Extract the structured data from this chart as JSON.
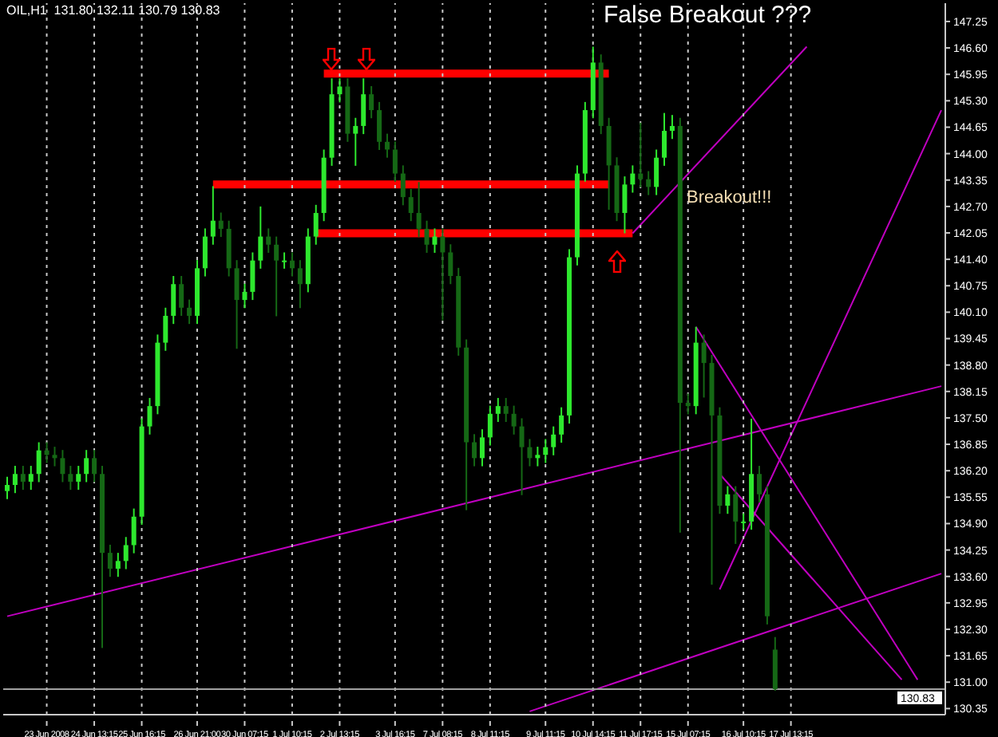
{
  "chart_data": {
    "type": "candlestick",
    "title": "OIL,H1  131.80 132.11 130.79 130.83",
    "colors": [
      "#2ee82e",
      "#2ee82e",
      "#156815",
      "#2ee82e",
      "#2ee82e",
      "#156815",
      "#156815",
      "#156815",
      "#156815",
      "#2ee82e",
      "#2ee82e",
      "#156815",
      "#156815",
      "#156815",
      "#2ee82e",
      "#2ee82e",
      "#2ee82e",
      "#2ee82e",
      "#2ee82e",
      "#2ee82e",
      "#2ee82e",
      "#2ee82e",
      "#156815",
      "#156815",
      "#2ee82e",
      "#2ee82e",
      "#2ee82e",
      "#156815",
      "#156815",
      "#156815",
      "#2ee82e",
      "#2ee82e",
      "#2ee82e",
      "#156815",
      "#156815",
      "#2ee82e",
      "#156815",
      "#156815",
      "#2ee82e",
      "#2ee82e",
      "#2ee82e",
      "#2ee82e",
      "#2ee82e",
      "#156815",
      "#2ee82e",
      "#2ee82e",
      "#156815",
      "#156815",
      "#156815",
      "#156815",
      "#156815",
      "#156815",
      "#156815",
      "#156815",
      "#2ee82e",
      "#156815",
      "#156815",
      "#156815",
      "#156815",
      "#156815",
      "#2ee82e",
      "#2ee82e",
      "#2ee82e",
      "#156815",
      "#156815",
      "#156815",
      "#156815",
      "#2ee82e",
      "#2ee82e",
      "#2ee82e",
      "#2ee82e",
      "#2ee82e",
      "#2ee82e",
      "#2ee82e",
      "#2ee82e",
      "#156815",
      "#156815",
      "#156815",
      "#2ee82e",
      "#2ee82e",
      "#156815",
      "#156815",
      "#2ee82e",
      "#2ee82e",
      "#2ee82e",
      "#156815",
      "#156815",
      "#2ee82e",
      "#156815",
      "#156815",
      "#156815",
      "#2ee82e",
      "#156815",
      "#2ee82e",
      "#2ee82e",
      "#156815",
      "#156815",
      "#156815",
      null,
      null,
      null,
      null,
      null,
      null,
      null,
      null,
      null,
      null,
      null,
      null,
      null,
      null,
      null,
      null,
      null,
      null,
      null,
      null,
      null
    ],
    "categories": [
      null,
      null,
      null,
      null,
      null,
      "23 Jun 2008",
      null,
      null,
      null,
      null,
      null,
      "24 Jun 13:15",
      null,
      null,
      null,
      null,
      null,
      "25 Jun 16:15",
      null,
      null,
      null,
      null,
      null,
      null,
      "26 Jun 21:00",
      null,
      null,
      null,
      null,
      null,
      "30 Jun 07:15",
      null,
      null,
      null,
      null,
      null,
      "1 Jul 10:15",
      null,
      null,
      null,
      null,
      null,
      "2 Jul 13:15",
      null,
      null,
      null,
      null,
      null,
      null,
      "3 Jul 16:15",
      null,
      null,
      null,
      null,
      null,
      "7 Jul 08:15",
      null,
      null,
      null,
      null,
      null,
      "8 Jul 11:15",
      null,
      null,
      null,
      null,
      null,
      null,
      "9 Jul 11:15",
      null,
      null,
      null,
      null,
      null,
      "10 Jul 14:15",
      null,
      null,
      null,
      null,
      null,
      "11 Jul 17:15",
      null,
      null,
      null,
      null,
      null,
      "15 Jul 07:15",
      null,
      null,
      null,
      null,
      null,
      null,
      "16 Jul 10:15",
      null,
      null,
      null,
      null,
      null,
      "17 Jul 13:15",
      null,
      null,
      null,
      null,
      null,
      null,
      null,
      null,
      null,
      null,
      null,
      null,
      null,
      null,
      null,
      null,
      null,
      null,
      null
    ],
    "ohlc": [
      [
        135.7,
        136.05,
        135.5,
        135.85
      ],
      [
        135.85,
        136.32,
        135.65,
        136.12
      ],
      [
        136.12,
        136.32,
        135.73,
        135.93
      ],
      [
        135.93,
        136.32,
        135.73,
        136.12
      ],
      [
        136.12,
        136.9,
        135.92,
        136.7
      ],
      [
        136.7,
        136.9,
        136.39,
        136.59
      ],
      [
        136.59,
        136.79,
        136.31,
        136.51
      ],
      [
        136.51,
        136.71,
        135.92,
        136.12
      ],
      [
        136.12,
        136.32,
        135.73,
        135.93
      ],
      [
        135.93,
        136.32,
        135.73,
        136.12
      ],
      [
        136.12,
        136.71,
        135.92,
        136.51
      ],
      [
        136.51,
        136.71,
        135.92,
        136.12
      ],
      [
        136.12,
        136.32,
        131.84,
        134.18
      ],
      [
        134.18,
        134.38,
        133.59,
        133.79
      ],
      [
        133.79,
        134.18,
        133.59,
        133.98
      ],
      [
        133.98,
        134.57,
        133.78,
        134.37
      ],
      [
        134.37,
        135.27,
        134.17,
        135.07
      ],
      [
        135.07,
        137.49,
        134.87,
        137.29
      ],
      [
        137.29,
        137.99,
        137.09,
        137.79
      ],
      [
        137.79,
        139.55,
        137.59,
        139.35
      ],
      [
        139.35,
        140.21,
        139.15,
        140.01
      ],
      [
        140.01,
        140.99,
        139.81,
        140.79
      ],
      [
        140.79,
        140.99,
        140.01,
        140.21
      ],
      [
        140.21,
        140.41,
        139.81,
        140.01
      ],
      [
        140.01,
        141.38,
        139.81,
        141.18
      ],
      [
        141.18,
        142.16,
        140.98,
        141.96
      ],
      [
        141.96,
        143.2,
        141.76,
        142.35
      ],
      [
        142.35,
        142.55,
        141.95,
        142.15
      ],
      [
        142.15,
        142.35,
        140.98,
        141.18
      ],
      [
        141.18,
        141.38,
        139.2,
        140.4
      ],
      [
        140.4,
        140.8,
        140.2,
        140.6
      ],
      [
        140.6,
        141.57,
        140.4,
        141.37
      ],
      [
        141.37,
        142.7,
        141.17,
        141.96
      ],
      [
        141.96,
        142.16,
        141.56,
        141.76
      ],
      [
        141.76,
        141.96,
        140.0,
        141.37
      ],
      [
        141.37,
        141.57,
        141.17,
        141.37
      ],
      [
        141.37,
        141.57,
        140.98,
        141.18
      ],
      [
        141.18,
        141.38,
        140.2,
        140.79
      ],
      [
        140.79,
        142.16,
        140.59,
        141.96
      ],
      [
        141.96,
        142.74,
        141.76,
        142.54
      ],
      [
        142.54,
        144.1,
        142.34,
        143.9
      ],
      [
        143.9,
        145.85,
        143.7,
        145.46
      ],
      [
        145.46,
        145.85,
        145.26,
        145.65
      ],
      [
        145.65,
        145.85,
        144.29,
        144.49
      ],
      [
        144.49,
        144.88,
        143.7,
        144.68
      ],
      [
        144.68,
        145.85,
        144.48,
        145.46
      ],
      [
        145.46,
        145.66,
        144.87,
        145.07
      ],
      [
        145.07,
        145.27,
        144.09,
        144.29
      ],
      [
        144.29,
        144.49,
        143.9,
        144.1
      ],
      [
        144.1,
        144.3,
        143.31,
        143.51
      ],
      [
        143.51,
        143.71,
        142.73,
        142.93
      ],
      [
        142.93,
        143.13,
        142.34,
        142.54
      ],
      [
        142.54,
        143.3,
        141.95,
        142.15
      ],
      [
        142.15,
        142.35,
        141.56,
        141.76
      ],
      [
        141.76,
        142.16,
        141.56,
        141.96
      ],
      [
        141.96,
        142.16,
        139.9,
        141.57
      ],
      [
        141.57,
        141.77,
        140.79,
        140.99
      ],
      [
        140.99,
        141.19,
        139.03,
        139.23
      ],
      [
        139.23,
        139.43,
        135.23,
        136.9
      ],
      [
        136.9,
        137.1,
        136.31,
        136.51
      ],
      [
        136.51,
        137.22,
        136.31,
        137.02
      ],
      [
        137.02,
        137.8,
        136.82,
        137.6
      ],
      [
        137.6,
        137.99,
        137.4,
        137.79
      ],
      [
        137.79,
        137.99,
        137.4,
        137.6
      ],
      [
        137.6,
        137.8,
        137.09,
        137.29
      ],
      [
        137.29,
        137.49,
        135.6,
        136.78
      ],
      [
        136.78,
        136.98,
        136.31,
        136.51
      ],
      [
        136.51,
        136.79,
        136.31,
        136.59
      ],
      [
        136.59,
        136.98,
        136.39,
        136.78
      ],
      [
        136.78,
        137.29,
        136.58,
        137.09
      ],
      [
        137.09,
        137.76,
        136.89,
        137.56
      ],
      [
        137.56,
        141.65,
        137.36,
        141.45
      ],
      [
        141.45,
        143.71,
        141.25,
        143.51
      ],
      [
        143.51,
        145.27,
        143.31,
        145.07
      ],
      [
        145.07,
        146.63,
        144.87,
        146.24
      ],
      [
        146.24,
        146.44,
        144.48,
        144.68
      ],
      [
        144.68,
        144.88,
        142.62,
        143.71
      ],
      [
        143.71,
        143.91,
        142.34,
        142.54
      ],
      [
        142.54,
        143.44,
        142.04,
        143.24
      ],
      [
        143.24,
        143.71,
        143.04,
        143.51
      ],
      [
        143.51,
        144.76,
        143.17,
        143.37
      ],
      [
        143.37,
        143.57,
        142.98,
        143.18
      ],
      [
        143.18,
        144.1,
        142.98,
        143.9
      ],
      [
        143.9,
        145.0,
        143.7,
        144.56
      ],
      [
        144.56,
        144.95,
        144.36,
        144.68
      ],
      [
        144.68,
        144.88,
        134.68,
        137.87
      ],
      [
        137.87,
        138.1,
        137.59,
        137.79
      ],
      [
        137.79,
        139.74,
        137.59,
        139.35
      ],
      [
        139.35,
        139.55,
        138.0,
        138.85
      ],
      [
        138.85,
        139.05,
        133.4,
        137.56
      ],
      [
        137.56,
        137.76,
        135.14,
        135.34
      ],
      [
        135.34,
        135.82,
        135.14,
        135.62
      ],
      [
        135.62,
        135.82,
        134.4,
        134.95
      ],
      [
        134.95,
        135.15,
        134.75,
        134.95
      ],
      [
        134.95,
        137.48,
        134.75,
        136.12
      ],
      [
        136.12,
        136.32,
        135.42,
        135.62
      ],
      [
        135.62,
        135.82,
        132.42,
        132.62
      ],
      [
        131.8,
        132.11,
        130.79,
        130.83
      ],
      null,
      null,
      null,
      null,
      null,
      null,
      null,
      null,
      null,
      null,
      null,
      null,
      null,
      null,
      null,
      null,
      null,
      null,
      null,
      null,
      null
    ],
    "series": [
      {
        "type": "line",
        "color": "#ff0000",
        "values": [
          null,
          null,
          null,
          null,
          null,
          null,
          null,
          null,
          null,
          null,
          null,
          null,
          null,
          null,
          null,
          null,
          null,
          null,
          null,
          null,
          null,
          null,
          null,
          null,
          null,
          null,
          null,
          null,
          null,
          null,
          null,
          null,
          null,
          null,
          null,
          null,
          null,
          null,
          null,
          null,
          145.97,
          null,
          null,
          null,
          null,
          null,
          null,
          null,
          null,
          null,
          null,
          null,
          null,
          null,
          null,
          null,
          null,
          null,
          null,
          null,
          null,
          null,
          null,
          null,
          null,
          null,
          null,
          null,
          null,
          null,
          null,
          null,
          null,
          null,
          null,
          null,
          145.97,
          null,
          null,
          null,
          null,
          null,
          null,
          null,
          null,
          null,
          null,
          null,
          null,
          null,
          null,
          null,
          null,
          null,
          null,
          null,
          null,
          null,
          null,
          null,
          null,
          null,
          null,
          null,
          null,
          null,
          null,
          null,
          null,
          null,
          null,
          null,
          null,
          null,
          null,
          null,
          null,
          null,
          null
        ]
      },
      {
        "type": "line",
        "color": "#ff0000",
        "values": [
          null,
          null,
          null,
          null,
          null,
          null,
          null,
          null,
          null,
          null,
          null,
          null,
          null,
          null,
          null,
          null,
          null,
          null,
          null,
          null,
          null,
          null,
          null,
          null,
          null,
          null,
          143.24,
          null,
          null,
          null,
          null,
          null,
          null,
          null,
          null,
          null,
          null,
          null,
          null,
          null,
          null,
          null,
          null,
          null,
          null,
          null,
          null,
          null,
          null,
          null,
          null,
          null,
          null,
          null,
          null,
          null,
          null,
          null,
          null,
          null,
          null,
          null,
          null,
          null,
          null,
          null,
          null,
          null,
          null,
          null,
          null,
          null,
          null,
          null,
          null,
          null,
          143.24,
          null,
          null,
          null,
          null,
          null,
          null,
          null,
          null,
          null,
          null,
          null,
          null,
          null,
          null,
          null,
          null,
          null,
          null,
          null,
          null,
          null,
          null,
          null,
          null,
          null,
          null,
          null,
          null,
          null,
          null,
          null,
          null,
          null,
          null,
          null,
          null,
          null,
          null,
          null,
          null,
          null,
          null
        ]
      },
      {
        "type": "line",
        "color": "#ff0000",
        "values": [
          null,
          null,
          null,
          null,
          null,
          null,
          null,
          null,
          null,
          null,
          null,
          null,
          null,
          null,
          null,
          null,
          null,
          null,
          null,
          null,
          null,
          null,
          null,
          null,
          null,
          null,
          null,
          null,
          null,
          null,
          null,
          null,
          null,
          null,
          null,
          null,
          null,
          null,
          null,
          142.04,
          null,
          null,
          null,
          null,
          null,
          null,
          null,
          null,
          null,
          null,
          null,
          null,
          null,
          null,
          null,
          null,
          null,
          null,
          null,
          null,
          null,
          null,
          null,
          null,
          null,
          null,
          null,
          null,
          null,
          null,
          null,
          null,
          null,
          null,
          null,
          null,
          null,
          null,
          null,
          142.04,
          null,
          null,
          null,
          null,
          null,
          null,
          null,
          null,
          null,
          null,
          null,
          null,
          null,
          null,
          null,
          null,
          null,
          null,
          null,
          null,
          null,
          null,
          null,
          null,
          null,
          null,
          null,
          null,
          null,
          null,
          null,
          null,
          null,
          null,
          null,
          null,
          null,
          null,
          null
        ]
      },
      {
        "type": "line",
        "color": "#c000c0",
        "values": [
          132.62,
          null,
          null,
          null,
          null,
          null,
          null,
          null,
          null,
          null,
          null,
          null,
          null,
          null,
          null,
          null,
          null,
          null,
          null,
          null,
          null,
          null,
          null,
          null,
          null,
          null,
          null,
          null,
          null,
          null,
          null,
          null,
          null,
          null,
          null,
          null,
          null,
          null,
          null,
          null,
          null,
          null,
          null,
          null,
          null,
          null,
          null,
          null,
          null,
          null,
          null,
          null,
          null,
          null,
          null,
          null,
          null,
          null,
          null,
          null,
          null,
          null,
          null,
          null,
          null,
          null,
          null,
          null,
          null,
          null,
          null,
          null,
          null,
          null,
          null,
          null,
          null,
          null,
          null,
          null,
          null,
          null,
          null,
          null,
          null,
          null,
          null,
          null,
          null,
          null,
          null,
          null,
          null,
          null,
          null,
          null,
          null,
          null,
          null,
          null,
          null,
          null,
          null,
          null,
          null,
          null,
          null,
          null,
          null,
          null,
          null,
          null,
          null,
          null,
          null,
          null,
          null,
          null,
          138.28
        ]
      },
      {
        "type": "line",
        "color": "#c000c0",
        "values": [
          null,
          null,
          null,
          null,
          null,
          null,
          null,
          null,
          null,
          null,
          null,
          null,
          null,
          null,
          null,
          null,
          null,
          null,
          null,
          null,
          null,
          null,
          null,
          null,
          null,
          null,
          null,
          null,
          null,
          null,
          null,
          null,
          null,
          null,
          null,
          null,
          null,
          null,
          null,
          null,
          null,
          null,
          null,
          null,
          null,
          null,
          null,
          null,
          null,
          null,
          null,
          null,
          null,
          null,
          null,
          null,
          null,
          null,
          null,
          null,
          null,
          null,
          null,
          null,
          null,
          null,
          null,
          null,
          null,
          null,
          null,
          null,
          null,
          null,
          null,
          null,
          null,
          null,
          null,
          142.04,
          null,
          null,
          null,
          null,
          null,
          null,
          null,
          null,
          null,
          null,
          null,
          null,
          null,
          null,
          null,
          null,
          null,
          null,
          null,
          null,
          null,
          146.63,
          null,
          null,
          null,
          null,
          null,
          null,
          null,
          null,
          null,
          null,
          null,
          null,
          null,
          null,
          null,
          null,
          null
        ]
      },
      {
        "type": "line",
        "color": "#c000c0",
        "values": [
          null,
          null,
          null,
          null,
          null,
          null,
          null,
          null,
          null,
          null,
          null,
          null,
          null,
          null,
          null,
          null,
          null,
          null,
          null,
          null,
          null,
          null,
          null,
          null,
          null,
          null,
          null,
          null,
          null,
          null,
          null,
          null,
          null,
          null,
          null,
          null,
          null,
          null,
          null,
          null,
          null,
          null,
          null,
          null,
          null,
          null,
          null,
          null,
          null,
          null,
          null,
          null,
          null,
          null,
          null,
          null,
          null,
          null,
          null,
          null,
          null,
          null,
          null,
          null,
          null,
          null,
          null,
          null,
          null,
          null,
          null,
          null,
          null,
          null,
          null,
          null,
          null,
          null,
          null,
          null,
          null,
          null,
          null,
          null,
          null,
          null,
          null,
          null,
          null,
          null,
          133.28,
          null,
          null,
          null,
          null,
          null,
          null,
          null,
          null,
          null,
          null,
          null,
          null,
          null,
          null,
          null,
          null,
          null,
          null,
          null,
          null,
          null,
          null,
          null,
          null,
          null,
          null,
          null,
          145.07
        ]
      },
      {
        "type": "line",
        "color": "#c000c0",
        "values": [
          null,
          null,
          null,
          null,
          null,
          null,
          null,
          null,
          null,
          null,
          null,
          null,
          null,
          null,
          null,
          null,
          null,
          null,
          null,
          null,
          null,
          null,
          null,
          null,
          null,
          null,
          null,
          null,
          null,
          null,
          null,
          null,
          null,
          null,
          null,
          null,
          null,
          null,
          null,
          null,
          null,
          null,
          null,
          null,
          null,
          null,
          null,
          null,
          null,
          null,
          null,
          null,
          null,
          null,
          null,
          null,
          null,
          null,
          null,
          null,
          null,
          null,
          null,
          null,
          null,
          null,
          null,
          null,
          null,
          null,
          null,
          null,
          null,
          null,
          null,
          null,
          null,
          null,
          null,
          null,
          null,
          null,
          null,
          null,
          null,
          null,
          null,
          139.74,
          null,
          null,
          null,
          null,
          null,
          null,
          null,
          null,
          null,
          null,
          null,
          null,
          null,
          null,
          null,
          null,
          null,
          null,
          null,
          null,
          null,
          null,
          null,
          null,
          null,
          null,
          null,
          131.06,
          null,
          null,
          null
        ]
      },
      {
        "type": "line",
        "color": "#c000c0",
        "values": [
          null,
          null,
          null,
          null,
          null,
          null,
          null,
          null,
          null,
          null,
          null,
          null,
          null,
          null,
          null,
          null,
          null,
          null,
          null,
          null,
          null,
          null,
          null,
          null,
          null,
          null,
          null,
          null,
          null,
          null,
          null,
          null,
          null,
          null,
          null,
          null,
          null,
          null,
          null,
          null,
          null,
          null,
          null,
          null,
          null,
          null,
          null,
          null,
          null,
          null,
          null,
          null,
          null,
          null,
          null,
          null,
          null,
          null,
          null,
          null,
          null,
          null,
          null,
          null,
          null,
          null,
          null,
          null,
          null,
          null,
          null,
          null,
          null,
          null,
          null,
          null,
          null,
          null,
          null,
          null,
          null,
          null,
          null,
          null,
          null,
          null,
          null,
          null,
          null,
          null,
          136.12,
          null,
          null,
          null,
          null,
          null,
          null,
          null,
          null,
          null,
          null,
          null,
          null,
          null,
          null,
          null,
          null,
          null,
          null,
          null,
          null,
          null,
          null,
          131.06,
          null,
          null,
          null,
          null,
          null
        ]
      },
      {
        "type": "line",
        "color": "#c000c0",
        "values": [
          null,
          null,
          null,
          null,
          null,
          null,
          null,
          null,
          null,
          null,
          null,
          null,
          null,
          null,
          null,
          null,
          null,
          null,
          null,
          null,
          null,
          null,
          null,
          null,
          null,
          null,
          null,
          null,
          null,
          null,
          null,
          null,
          null,
          null,
          null,
          null,
          null,
          null,
          null,
          null,
          null,
          null,
          null,
          null,
          null,
          null,
          null,
          null,
          null,
          null,
          null,
          null,
          null,
          null,
          null,
          null,
          null,
          null,
          null,
          null,
          null,
          null,
          null,
          null,
          null,
          null,
          130.28,
          null,
          null,
          null,
          null,
          null,
          null,
          null,
          null,
          null,
          null,
          null,
          null,
          null,
          null,
          null,
          null,
          null,
          null,
          null,
          null,
          null,
          null,
          null,
          null,
          null,
          null,
          null,
          null,
          null,
          null,
          null,
          null,
          null,
          null,
          null,
          null,
          null,
          null,
          null,
          null,
          null,
          null,
          null,
          null,
          null,
          null,
          null,
          null,
          null,
          null,
          null,
          133.67
        ]
      }
    ],
    "ylim": [
      130.2,
      147.7
    ],
    "yticks": [
      {
        "value": 130.35,
        "label": "130.35"
      },
      {
        "value": 131,
        "label": "131.00"
      },
      {
        "value": 131.65,
        "label": "131.65"
      },
      {
        "value": 132.3,
        "label": "132.30"
      },
      {
        "value": 132.95,
        "label": "132.95"
      },
      {
        "value": 133.6,
        "label": "133.60"
      },
      {
        "value": 134.25,
        "label": "134.25"
      },
      {
        "value": 134.9,
        "label": "134.90"
      },
      {
        "value": 135.55,
        "label": "135.55"
      },
      {
        "value": 136.2,
        "label": "136.20"
      },
      {
        "value": 136.85,
        "label": "136.85"
      },
      {
        "value": 137.5,
        "label": "137.50"
      },
      {
        "value": 138.15,
        "label": "138.15"
      },
      {
        "value": 138.8,
        "label": "138.80"
      },
      {
        "value": 139.45,
        "label": "139.45"
      },
      {
        "value": 140.1,
        "label": "140.10"
      },
      {
        "value": 140.75,
        "label": "140.75"
      },
      {
        "value": 141.4,
        "label": "141.40"
      },
      {
        "value": 142.05,
        "label": "142.05"
      },
      {
        "value": 142.7,
        "label": "142.70"
      },
      {
        "value": 143.35,
        "label": "143.35"
      },
      {
        "value": 144,
        "label": "144.00"
      },
      {
        "value": 144.65,
        "label": "144.65"
      },
      {
        "value": 145.3,
        "label": "145.30"
      },
      {
        "value": 145.95,
        "label": "145.95"
      },
      {
        "value": 146.6,
        "label": "146.60"
      },
      {
        "value": 147.25,
        "label": "147.25"
      }
    ],
    "ref_lines": [
      {
        "axis": "y",
        "value": 130.83,
        "label": "130.83",
        "color": "#a0a0a0"
      }
    ],
    "annotations": [
      "False Breakout ???",
      "Breakout!!!"
    ],
    "grid": "x"
  }
}
